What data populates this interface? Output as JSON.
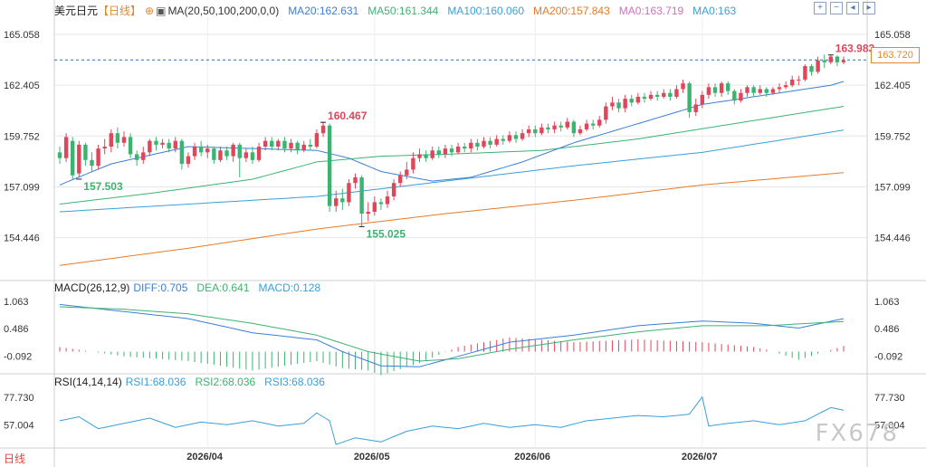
{
  "header": {
    "pair": "美元日元",
    "period": "【日线】",
    "ma_label": "MA(20,50,100,200,0,0)",
    "ma20": "MA20:162.631",
    "ma50": "MA50:161.344",
    "ma100": "MA100:160.060",
    "ma200": "MA200:157.843",
    "ma0a": "MA0:163.719",
    "ma0b": "MA0:163"
  },
  "macd_header": {
    "label": "MACD(26,12,9)",
    "diff": "DIFF:0.705",
    "dea": "DEA:0.641",
    "macd": "MACD:0.128"
  },
  "rsi_header": {
    "label": "RSI(14,14,14)",
    "rsi1": "RSI1:68.036",
    "rsi2": "RSI2:68.036",
    "rsi3": "RSI3:68.036"
  },
  "current_price": "163.720",
  "period_tab": "日线",
  "watermark": "FX678",
  "toolbar": [
    "zoom-in-icon",
    "zoom-out-icon",
    "scroll-left-icon",
    "scroll-right-icon"
  ],
  "colors": {
    "up": "#e0465a",
    "down": "#3cb371",
    "ma20": "#3a7fd5",
    "ma50": "#3cb371",
    "ma100": "#3a9fd8",
    "ma200": "#e87b28",
    "diff": "#3a7fd5",
    "dea": "#3cb371",
    "rsi": "#3a9fd8",
    "grid": "#e6e6e6",
    "axis": "#333333"
  },
  "chart_data": [
    {
      "type": "candlestick",
      "title": "美元日元",
      "y_ticks": [
        "165.058",
        "162.405",
        "159.752",
        "157.099",
        "154.446"
      ],
      "ylim": [
        152.4,
        166.0
      ],
      "x_ticks": [
        "2026/04",
        "2026/05",
        "2026/06",
        "2026/07"
      ],
      "annotations": [
        {
          "text": "160.467",
          "bar": 41,
          "value": 160.467,
          "kind": "high"
        },
        {
          "text": "157.503",
          "bar": 3,
          "value": 157.503,
          "kind": "low"
        },
        {
          "text": "155.025",
          "bar": 47,
          "value": 155.025,
          "kind": "low"
        },
        {
          "text": "163.983",
          "bar": 120,
          "value": 163.983,
          "kind": "high"
        }
      ],
      "last_price_line": 163.72,
      "candles": [
        [
          158.9,
          158.6,
          159.2,
          158.3
        ],
        [
          158.6,
          159.7,
          159.9,
          158.4
        ],
        [
          159.5,
          157.7,
          159.7,
          157.5
        ],
        [
          157.8,
          159.3,
          159.5,
          157.6
        ],
        [
          159.3,
          158.5,
          159.4,
          158.2
        ],
        [
          158.5,
          158.2,
          158.9,
          157.9
        ],
        [
          158.2,
          159.1,
          159.3,
          158.0
        ],
        [
          159.1,
          159.2,
          159.6,
          158.8
        ],
        [
          159.2,
          159.9,
          160.1,
          158.9
        ],
        [
          159.9,
          159.4,
          160.2,
          159.1
        ],
        [
          159.4,
          159.7,
          160.0,
          159.2
        ],
        [
          159.7,
          158.8,
          159.9,
          158.6
        ],
        [
          158.8,
          158.5,
          159.0,
          158.2
        ],
        [
          158.5,
          158.9,
          159.2,
          158.3
        ],
        [
          158.9,
          159.5,
          159.6,
          158.7
        ],
        [
          159.5,
          159.3,
          159.7,
          159.0
        ],
        [
          159.3,
          159.4,
          159.6,
          159.1
        ],
        [
          159.4,
          159.1,
          159.6,
          158.9
        ],
        [
          159.1,
          159.5,
          159.7,
          158.9
        ],
        [
          159.5,
          158.3,
          159.6,
          158.0
        ],
        [
          158.3,
          158.7,
          158.9,
          158.1
        ],
        [
          158.7,
          159.2,
          159.4,
          158.5
        ],
        [
          159.2,
          158.9,
          159.5,
          158.7
        ],
        [
          158.9,
          159.1,
          159.3,
          158.6
        ],
        [
          159.1,
          158.5,
          159.2,
          158.3
        ],
        [
          158.5,
          159.0,
          159.2,
          158.4
        ],
        [
          159.0,
          158.7,
          159.2,
          158.5
        ],
        [
          158.7,
          159.3,
          159.4,
          158.4
        ],
        [
          159.3,
          158.6,
          159.4,
          157.6
        ],
        [
          158.6,
          158.9,
          159.1,
          158.4
        ],
        [
          158.9,
          158.5,
          159.2,
          158.3
        ],
        [
          158.5,
          159.2,
          159.4,
          158.4
        ],
        [
          159.2,
          159.5,
          159.7,
          159.0
        ],
        [
          159.5,
          159.2,
          159.7,
          159.0
        ],
        [
          159.2,
          159.5,
          159.6,
          159.0
        ],
        [
          159.5,
          159.1,
          159.7,
          158.9
        ],
        [
          159.1,
          159.4,
          159.6,
          158.9
        ],
        [
          159.4,
          159.0,
          159.5,
          158.8
        ],
        [
          159.0,
          159.3,
          159.5,
          158.9
        ],
        [
          159.3,
          159.2,
          159.6,
          159.0
        ],
        [
          159.2,
          159.9,
          160.1,
          159.1
        ],
        [
          159.9,
          160.3,
          160.5,
          159.7
        ],
        [
          160.3,
          156.1,
          160.4,
          155.8
        ],
        [
          156.1,
          156.5,
          156.9,
          155.8
        ],
        [
          156.5,
          156.3,
          157.0,
          155.9
        ],
        [
          156.3,
          157.3,
          157.5,
          156.1
        ],
        [
          157.3,
          157.6,
          157.8,
          157.0
        ],
        [
          157.6,
          155.7,
          157.7,
          155.0
        ],
        [
          155.7,
          155.8,
          156.3,
          155.3
        ],
        [
          155.8,
          156.3,
          156.6,
          155.6
        ],
        [
          156.3,
          156.2,
          156.5,
          155.9
        ],
        [
          156.2,
          156.6,
          156.9,
          156.0
        ],
        [
          156.6,
          157.3,
          157.5,
          156.4
        ],
        [
          157.3,
          157.7,
          157.9,
          157.1
        ],
        [
          157.7,
          158.0,
          158.4,
          157.5
        ],
        [
          158.0,
          158.6,
          158.9,
          157.8
        ],
        [
          158.6,
          158.8,
          159.1,
          158.4
        ],
        [
          158.8,
          158.6,
          159.0,
          158.4
        ],
        [
          158.6,
          159.0,
          159.2,
          158.5
        ],
        [
          159.0,
          158.8,
          159.2,
          158.6
        ],
        [
          158.8,
          159.1,
          159.3,
          158.6
        ],
        [
          159.1,
          158.9,
          159.3,
          158.7
        ],
        [
          158.9,
          159.2,
          159.4,
          158.8
        ],
        [
          159.2,
          159.1,
          159.4,
          158.9
        ],
        [
          159.1,
          159.4,
          159.6,
          158.9
        ],
        [
          159.4,
          159.2,
          159.6,
          159.0
        ],
        [
          159.2,
          159.5,
          159.7,
          159.1
        ],
        [
          159.5,
          159.3,
          159.7,
          159.1
        ],
        [
          159.3,
          159.6,
          159.8,
          159.2
        ],
        [
          159.6,
          159.5,
          159.8,
          159.3
        ],
        [
          159.5,
          159.8,
          160.0,
          159.4
        ],
        [
          159.8,
          159.6,
          160.0,
          159.4
        ],
        [
          159.6,
          159.9,
          160.1,
          159.5
        ],
        [
          159.9,
          160.1,
          160.3,
          159.7
        ],
        [
          160.1,
          159.9,
          160.3,
          159.7
        ],
        [
          159.9,
          160.2,
          160.4,
          159.8
        ],
        [
          160.2,
          160.1,
          160.4,
          159.9
        ],
        [
          160.1,
          160.3,
          160.5,
          159.9
        ],
        [
          160.3,
          160.2,
          160.5,
          160.0
        ],
        [
          160.2,
          160.5,
          160.7,
          160.1
        ],
        [
          160.5,
          159.9,
          160.6,
          159.7
        ],
        [
          159.9,
          160.1,
          160.3,
          159.8
        ],
        [
          160.1,
          160.4,
          160.6,
          160.0
        ],
        [
          160.4,
          160.3,
          160.6,
          160.1
        ],
        [
          160.3,
          160.6,
          160.8,
          160.2
        ],
        [
          160.6,
          161.3,
          161.5,
          160.4
        ],
        [
          161.3,
          161.5,
          161.8,
          161.1
        ],
        [
          161.5,
          161.2,
          161.7,
          161.0
        ],
        [
          161.2,
          161.7,
          161.9,
          161.0
        ],
        [
          161.7,
          161.5,
          161.9,
          161.3
        ],
        [
          161.5,
          161.8,
          162.0,
          161.4
        ],
        [
          161.8,
          161.7,
          162.0,
          161.5
        ],
        [
          161.7,
          161.9,
          162.1,
          161.6
        ],
        [
          161.9,
          161.8,
          162.1,
          161.6
        ],
        [
          161.8,
          162.0,
          162.2,
          161.7
        ],
        [
          162.0,
          161.8,
          162.2,
          161.6
        ],
        [
          161.8,
          162.2,
          162.4,
          161.7
        ],
        [
          162.2,
          162.5,
          162.7,
          162.0
        ],
        [
          162.5,
          161.0,
          162.6,
          160.7
        ],
        [
          161.0,
          161.4,
          161.7,
          160.8
        ],
        [
          161.4,
          161.9,
          162.1,
          161.2
        ],
        [
          161.9,
          162.3,
          162.5,
          161.7
        ],
        [
          162.3,
          162.0,
          162.5,
          161.8
        ],
        [
          162.0,
          162.5,
          162.6,
          161.8
        ],
        [
          162.5,
          162.1,
          162.6,
          161.9
        ],
        [
          162.1,
          161.6,
          162.2,
          161.4
        ],
        [
          161.6,
          162.0,
          162.2,
          161.5
        ],
        [
          162.0,
          162.3,
          162.4,
          161.8
        ],
        [
          162.3,
          162.0,
          162.4,
          161.8
        ],
        [
          162.0,
          162.2,
          162.4,
          161.9
        ],
        [
          162.2,
          162.0,
          162.3,
          161.8
        ],
        [
          162.0,
          162.2,
          162.3,
          161.9
        ],
        [
          162.2,
          162.3,
          162.5,
          162.0
        ],
        [
          162.3,
          162.4,
          162.6,
          162.2
        ],
        [
          162.4,
          162.7,
          162.9,
          162.3
        ],
        [
          162.7,
          162.7,
          162.9,
          162.4
        ],
        [
          162.7,
          163.4,
          163.5,
          162.6
        ],
        [
          163.4,
          163.1,
          163.5,
          162.9
        ],
        [
          163.1,
          163.7,
          163.9,
          163.0
        ],
        [
          163.7,
          163.6,
          164.0,
          163.3
        ],
        [
          163.6,
          163.9,
          163.98,
          163.5
        ],
        [
          163.9,
          163.6,
          163.95,
          163.4
        ],
        [
          163.6,
          163.7,
          163.9,
          163.5
        ]
      ],
      "ma20_anchors": [
        [
          0,
          157.2
        ],
        [
          8,
          158.3
        ],
        [
          20,
          159.2
        ],
        [
          30,
          159.1
        ],
        [
          40,
          159.0
        ],
        [
          45,
          158.6
        ],
        [
          50,
          157.9
        ],
        [
          58,
          157.4
        ],
        [
          64,
          157.6
        ],
        [
          72,
          158.4
        ],
        [
          80,
          159.4
        ],
        [
          90,
          160.4
        ],
        [
          100,
          161.4
        ],
        [
          110,
          161.9
        ],
        [
          120,
          162.4
        ],
        [
          122,
          162.6
        ]
      ],
      "ma50_anchors": [
        [
          0,
          156.2
        ],
        [
          15,
          156.8
        ],
        [
          30,
          157.5
        ],
        [
          40,
          158.4
        ],
        [
          50,
          158.7
        ],
        [
          60,
          158.8
        ],
        [
          75,
          159.0
        ],
        [
          90,
          159.6
        ],
        [
          105,
          160.4
        ],
        [
          122,
          161.3
        ]
      ],
      "ma100_anchors": [
        [
          0,
          155.8
        ],
        [
          20,
          156.2
        ],
        [
          40,
          156.6
        ],
        [
          60,
          157.4
        ],
        [
          80,
          158.2
        ],
        [
          100,
          158.9
        ],
        [
          122,
          160.06
        ]
      ],
      "ma200_anchors": [
        [
          0,
          153.0
        ],
        [
          20,
          153.9
        ],
        [
          40,
          154.9
        ],
        [
          60,
          155.7
        ],
        [
          80,
          156.4
        ],
        [
          100,
          157.2
        ],
        [
          122,
          157.84
        ]
      ]
    },
    {
      "type": "macd",
      "title": "MACD(26,12,9)",
      "y_ticks": [
        "1.063",
        "0.486",
        "-0.092"
      ],
      "ylim": [
        -0.45,
        1.2
      ],
      "diff_anchors": [
        [
          0,
          1.0
        ],
        [
          10,
          0.85
        ],
        [
          20,
          0.7
        ],
        [
          30,
          0.4
        ],
        [
          40,
          0.25
        ],
        [
          44,
          0.0
        ],
        [
          50,
          -0.3
        ],
        [
          56,
          -0.32
        ],
        [
          62,
          -0.1
        ],
        [
          70,
          0.2
        ],
        [
          80,
          0.35
        ],
        [
          90,
          0.55
        ],
        [
          100,
          0.65
        ],
        [
          108,
          0.6
        ],
        [
          115,
          0.5
        ],
        [
          122,
          0.7
        ]
      ],
      "dea_anchors": [
        [
          0,
          0.95
        ],
        [
          10,
          0.9
        ],
        [
          20,
          0.8
        ],
        [
          30,
          0.6
        ],
        [
          40,
          0.35
        ],
        [
          48,
          0.0
        ],
        [
          56,
          -0.2
        ],
        [
          62,
          -0.15
        ],
        [
          70,
          0.05
        ],
        [
          80,
          0.25
        ],
        [
          90,
          0.42
        ],
        [
          100,
          0.55
        ],
        [
          110,
          0.55
        ],
        [
          122,
          0.64
        ]
      ],
      "last_macd": 0.128
    },
    {
      "type": "line",
      "title": "RSI(14,14,14)",
      "y_ticks": [
        "77.730",
        "57.004"
      ],
      "ylim": [
        40,
        84
      ],
      "rsi_anchors": [
        [
          0,
          60
        ],
        [
          3,
          63
        ],
        [
          6,
          54
        ],
        [
          10,
          58
        ],
        [
          14,
          62
        ],
        [
          18,
          55
        ],
        [
          22,
          59
        ],
        [
          26,
          57
        ],
        [
          30,
          60
        ],
        [
          34,
          56
        ],
        [
          38,
          58
        ],
        [
          40,
          66
        ],
        [
          42,
          60
        ],
        [
          43,
          42
        ],
        [
          46,
          47
        ],
        [
          50,
          44
        ],
        [
          54,
          52
        ],
        [
          58,
          56
        ],
        [
          62,
          54
        ],
        [
          66,
          58
        ],
        [
          70,
          55
        ],
        [
          74,
          57
        ],
        [
          78,
          55
        ],
        [
          82,
          60
        ],
        [
          86,
          62
        ],
        [
          90,
          64
        ],
        [
          94,
          63
        ],
        [
          98,
          65
        ],
        [
          100,
          78
        ],
        [
          101,
          56
        ],
        [
          104,
          58
        ],
        [
          108,
          60
        ],
        [
          112,
          57
        ],
        [
          116,
          60
        ],
        [
          120,
          70
        ],
        [
          122,
          68
        ]
      ]
    }
  ]
}
